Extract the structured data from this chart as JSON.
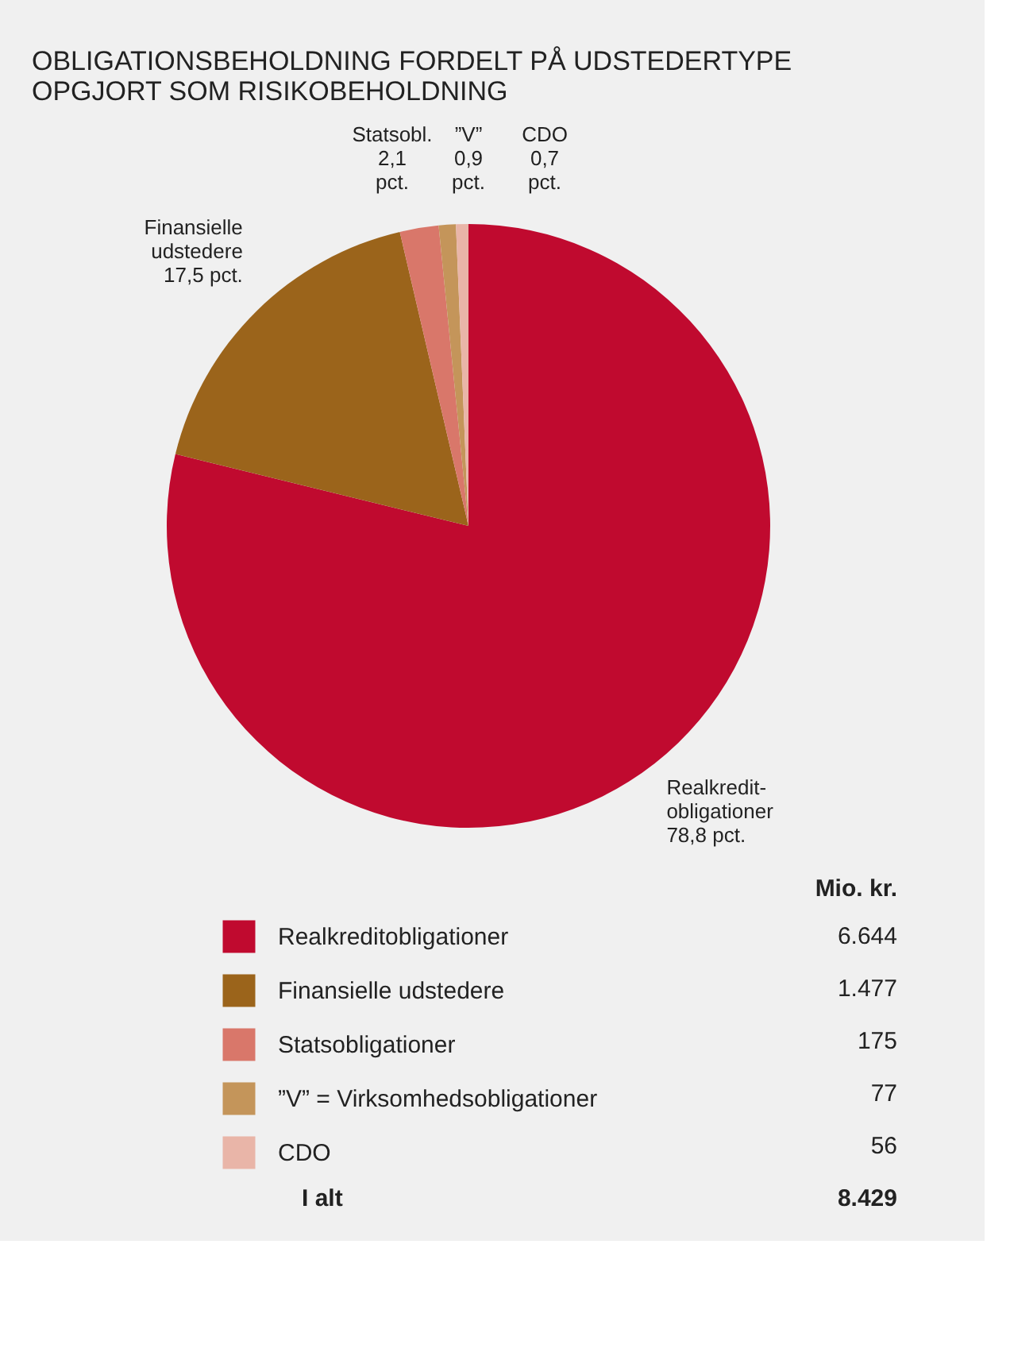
{
  "chart_data": {
    "type": "pie",
    "title": [
      "OBLIGATIONSBEHOLDNING FORDELT PÅ UDSTEDERTYPE",
      "OPGJORT SOM RISIKOBEHOLDNING"
    ],
    "categories": [
      "Realkreditobligationer",
      "Finansielle udstedere",
      "Statsobligationer",
      "”V” = Virksomhedsobligationer",
      "CDO"
    ],
    "values": [
      6644,
      1477,
      175,
      77,
      56
    ],
    "value_labels": [
      "6.644",
      "1.477",
      "175",
      "77",
      "56"
    ],
    "colors": [
      "#c00a2f",
      "#9b641b",
      "#d9776a",
      "#c4955a",
      "#e9b5a8"
    ],
    "legend_title": "Mio. kr.",
    "legend": "bottom",
    "totals": [
      "8.429"
    ],
    "annotations": [
      "Realkredit-\nobligationer\n78,8 pct.",
      "Finansielle\nudstedere\n17,5 pct.",
      "Statsobl.\n2,1\npct.",
      "”V”\n0,9\npct.",
      "CDO\n0,7\npct.",
      "I alt"
    ]
  }
}
